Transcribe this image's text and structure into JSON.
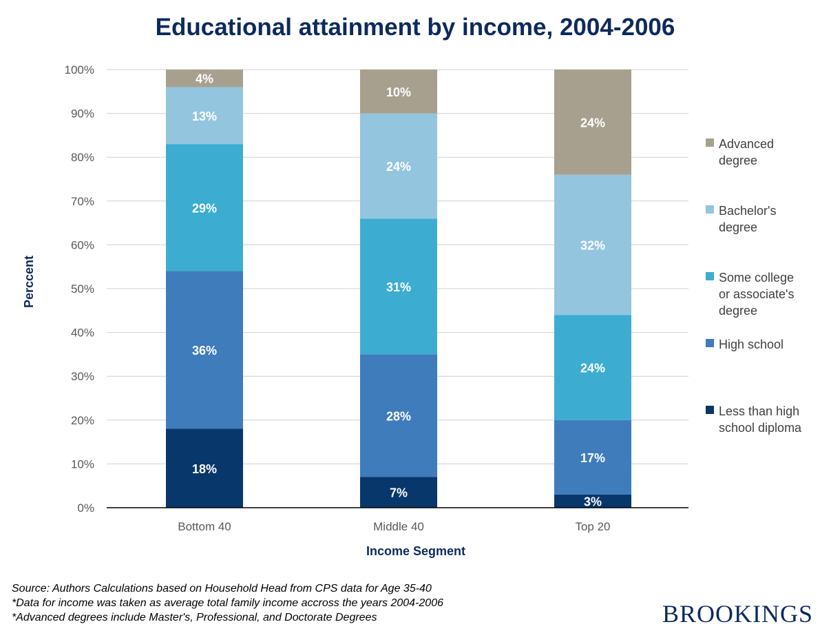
{
  "chart_data": {
    "type": "bar",
    "stacked": true,
    "title": "Educational attainment by income, 2004-2006",
    "xlabel": "Income Segment",
    "ylabel": "Perccent",
    "ylim": [
      0,
      100
    ],
    "yticks": [
      "0%",
      "10%",
      "20%",
      "30%",
      "40%",
      "50%",
      "60%",
      "70%",
      "80%",
      "90%",
      "100%"
    ],
    "categories": [
      "Bottom 40",
      "Middle 40",
      "Top 20"
    ],
    "grid": true,
    "legend_position": "right",
    "series": [
      {
        "name": "Less than high school diploma",
        "legend_lines": [
          "Less than high",
          "school diploma"
        ],
        "color": "#08376b",
        "values": [
          18,
          7,
          3
        ],
        "labels": [
          "18%",
          "7%",
          "3%"
        ]
      },
      {
        "name": "High school",
        "legend_lines": [
          "High school"
        ],
        "color": "#3f7cbc",
        "values": [
          36,
          28,
          17
        ],
        "labels": [
          "36%",
          "28%",
          "17%"
        ]
      },
      {
        "name": "Some college or associate's degree",
        "legend_lines": [
          "Some college",
          "or associate's",
          "degree"
        ],
        "color": "#3cadd1",
        "values": [
          29,
          31,
          24
        ],
        "labels": [
          "29%",
          "31%",
          "24%"
        ]
      },
      {
        "name": "Bachelor's degree",
        "legend_lines": [
          "Bachelor's",
          "degree"
        ],
        "color": "#93c5df",
        "values": [
          13,
          24,
          32
        ],
        "labels": [
          "13%",
          "24%",
          "32%"
        ]
      },
      {
        "name": "Advanced degree",
        "legend_lines": [
          "Advanced",
          "degree"
        ],
        "color": "#a8a08f",
        "values": [
          4,
          10,
          24
        ],
        "labels": [
          "4%",
          "10%",
          "24%"
        ]
      }
    ]
  },
  "notes": [
    "Source: Authors Calculations  based on Household Head from CPS data for Age 35-40",
    "*Data for income was taken as average total family income accross the years 2004-2006",
    "*Advanced degrees include Master's, Professional, and Doctorate Degrees"
  ],
  "brand": "BROOKINGS"
}
